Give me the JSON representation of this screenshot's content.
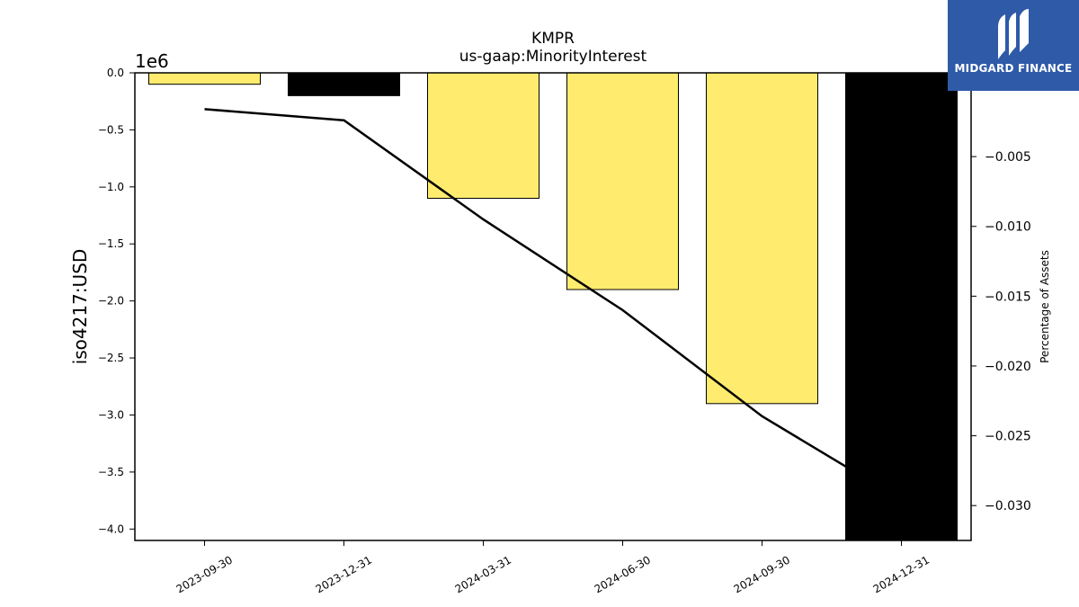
{
  "chart_data": {
    "type": "bar",
    "title": "KMPR",
    "subtitle": "us-gaap:MinorityInterest",
    "ylabel": "iso4217:USD",
    "y2label": "Percentage of Assets",
    "offset_text": "1e6",
    "categories": [
      "2023-09-30",
      "2023-12-31",
      "2024-03-31",
      "2024-06-30",
      "2024-09-30",
      "2024-12-31"
    ],
    "values": [
      -100000,
      -200000,
      -1100000,
      -1900000,
      -2900000,
      -4100000
    ],
    "bar_colors": [
      "#ffec6e",
      "#000000",
      "#ffec6e",
      "#ffec6e",
      "#ffec6e",
      "#000000"
    ],
    "line_values": [
      -0.0016,
      -0.0024,
      -0.0095,
      -0.016,
      -0.0236,
      -0.0296
    ],
    "ylim": [
      -4100000,
      0
    ],
    "y2lim": [
      -0.0325,
      0.001
    ],
    "yticks": [
      0.0,
      -0.5,
      -1.0,
      -1.5,
      -2.0,
      -2.5,
      -3.0,
      -3.5,
      -4.0
    ],
    "yticks_labels": [
      "0.0",
      "−0.5",
      "−1.0",
      "−1.5",
      "−2.0",
      "−2.5",
      "−3.0",
      "−3.5",
      "−4.0"
    ],
    "y2ticks": [
      -0.005,
      -0.01,
      -0.015,
      -0.02,
      -0.025,
      -0.03
    ],
    "y2ticks_labels": [
      "−0.005",
      "−0.010",
      "−0.015",
      "−0.020",
      "−0.025",
      "−0.030"
    ],
    "grid": false
  },
  "logo": {
    "text": "MIDGARD FINANCE",
    "bg_color": "#2e5aa8"
  }
}
